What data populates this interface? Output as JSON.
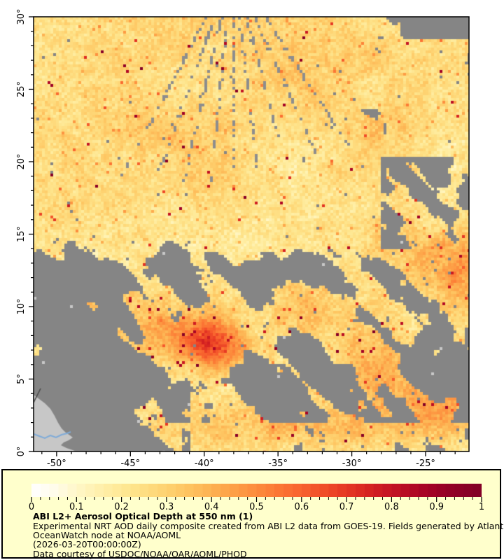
{
  "figure": {
    "title": "ABI L2+ Aerosol Optical Depth at 550 nm (1)",
    "description_lines": [
      "Experimental NRT AOD daily composite created from ABI L2 data from GOES-19. Fields generated by Atlantic",
      "OceanWatch node at NOAA/AOML"
    ],
    "timestamp_line": "(2026-03-20T00:00:00Z)",
    "courtesy_line": "Data courtesy of USDOC/NOAA/OAR/AOML/PHOD"
  },
  "chart_data": {
    "type": "heatmap",
    "title": "ABI L2+ Aerosol Optical Depth at 550 nm (1)",
    "variable": "Aerosol Optical Depth at 550 nm",
    "source": "ABI L2 data from GOES-19",
    "date_shown": "2026-03-20T00:00:00Z",
    "x_axis": {
      "range": [
        -51.56,
        -22.06
      ],
      "major_ticks": [
        -50,
        -45,
        -40,
        -35,
        -30,
        -25
      ],
      "tick_labels": [
        "-50°",
        "-45°",
        "-40°",
        "-35°",
        "-30°",
        "-25°"
      ],
      "minor_step": 1
    },
    "y_axis": {
      "range": [
        0,
        30
      ],
      "major_ticks": [
        0,
        5,
        10,
        15,
        20,
        25,
        30
      ],
      "tick_labels": [
        "0°",
        "5°",
        "10°",
        "15°",
        "20°",
        "25°",
        "30°"
      ],
      "minor_step": 1
    },
    "colorbar": {
      "range": [
        0,
        1
      ],
      "major_ticks": [
        0,
        0.1,
        0.2,
        0.3,
        0.4,
        0.5,
        0.6,
        0.7,
        0.8,
        0.9,
        1
      ],
      "tick_labels": [
        "0",
        "0.1",
        "0.2",
        "0.3",
        "0.4",
        "0.5",
        "0.6",
        "0.7",
        "0.8",
        "0.9",
        "1"
      ],
      "minor_step": 0.02,
      "colormap": [
        [
          0.0,
          "#ffffff"
        ],
        [
          0.05,
          "#fffceb"
        ],
        [
          0.1,
          "#fff7c8"
        ],
        [
          0.16,
          "#ffefa7"
        ],
        [
          0.22,
          "#fee58d"
        ],
        [
          0.28,
          "#fed777"
        ],
        [
          0.34,
          "#fec662"
        ],
        [
          0.4,
          "#fdb151"
        ],
        [
          0.46,
          "#fd9b44"
        ],
        [
          0.52,
          "#fc8339"
        ],
        [
          0.58,
          "#fa6a30"
        ],
        [
          0.64,
          "#f25129"
        ],
        [
          0.7,
          "#e53723"
        ],
        [
          0.76,
          "#d21f21"
        ],
        [
          0.82,
          "#bc0e24"
        ],
        [
          0.88,
          "#a40126"
        ],
        [
          0.94,
          "#8f0026"
        ],
        [
          1.0,
          "#800026"
        ]
      ]
    },
    "colors": {
      "no_data_gray": "#858585",
      "light_patch_gray": "#c8c8c8",
      "land_gray": "#c7c7c7",
      "river_blue": "#7fabd8",
      "border_dark": "#4a4a4a",
      "legend_background": "#ffffcc",
      "frame": "#000000"
    },
    "features": {
      "land_polygon": [
        [
          0,
          540
        ],
        [
          8,
          546
        ],
        [
          16,
          552
        ],
        [
          24,
          560
        ],
        [
          30,
          570
        ],
        [
          35,
          580
        ],
        [
          40,
          588
        ],
        [
          46,
          594
        ],
        [
          52,
          598
        ],
        [
          56,
          601
        ],
        [
          50,
          605
        ],
        [
          43,
          608
        ],
        [
          39,
          612
        ],
        [
          47,
          616
        ],
        [
          56,
          619
        ],
        [
          60,
          621
        ],
        [
          0,
          621
        ]
      ],
      "river_path": [
        [
          0,
          596
        ],
        [
          8,
          599
        ],
        [
          16,
          602
        ],
        [
          24,
          598
        ],
        [
          32,
          601
        ],
        [
          40,
          597
        ],
        [
          48,
          595
        ],
        [
          53,
          593
        ]
      ],
      "border_line": [
        [
          0,
          551
        ],
        [
          10,
          531
        ]
      ],
      "cloud_zones": [
        {
          "u": [
            0.79,
            1.01
          ],
          "v": [
            0.95,
            1.01
          ],
          "t": 0.53
        },
        {
          "u": [
            0.84,
            1.01
          ],
          "v": [
            0.8,
            1.01
          ],
          "t": 0.33
        },
        {
          "u": [
            0.65,
            0.81
          ],
          "v": [
            0.62,
            0.79
          ],
          "t": 0.3
        },
        {
          "u": [
            0.8,
            1.01
          ],
          "v": [
            0.47,
            0.68
          ],
          "t": 0.45
        },
        {
          "u": [
            -0.01,
            0.36
          ],
          "v": [
            -0.01,
            0.54
          ],
          "t": 0.62,
          "ramp": [
            0.54,
            9
          ]
        },
        {
          "u": [
            0.36,
            1.01
          ],
          "v": [
            -0.01,
            0.52
          ],
          "t": 0.5,
          "ramp": [
            0.52,
            10
          ]
        },
        {
          "u": [
            -0.01,
            1.01
          ],
          "v": [
            -0.01,
            0.2
          ],
          "t": 0.08
        },
        {
          "u": [
            0.22,
            1.01
          ],
          "v": [
            -0.01,
            0.065
          ],
          "t": -0.18
        }
      ],
      "aerosol_plumes": [
        [
          0.41,
          0.245,
          0.05,
          0.04,
          0.4
        ],
        [
          0.3,
          0.28,
          0.1,
          0.05,
          0.22
        ],
        [
          0.1,
          0.33,
          0.05,
          0.04,
          0.2
        ],
        [
          0.62,
          0.33,
          0.06,
          0.05,
          0.18
        ],
        [
          0.55,
          0.06,
          0.28,
          0.045,
          0.15
        ],
        [
          0.78,
          0.21,
          0.05,
          0.08,
          0.18
        ],
        [
          0.93,
          0.1,
          0.06,
          0.05,
          0.2
        ],
        [
          0.99,
          0.4,
          0.05,
          0.07,
          0.22
        ],
        [
          0.88,
          0.46,
          0.08,
          0.05,
          0.15
        ]
      ],
      "radial_streaks": {
        "origin": [
          285,
          -70
        ],
        "angles_deg": [
          -28,
          -20,
          -13,
          -6,
          0,
          7,
          15,
          24,
          33
        ],
        "max_y": 235
      }
    }
  }
}
